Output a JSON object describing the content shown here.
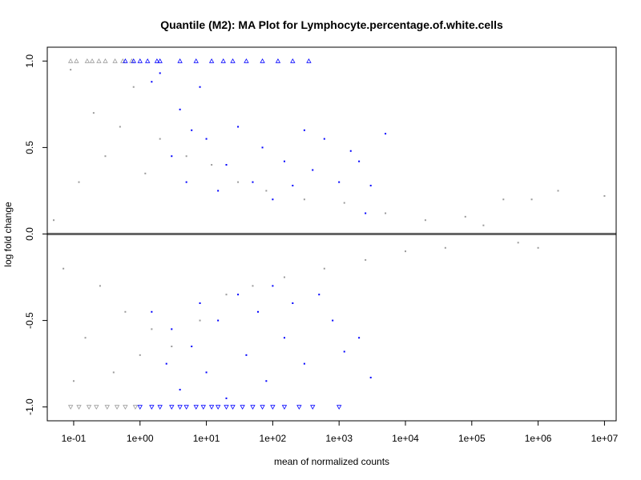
{
  "chart_data": {
    "type": "scatter",
    "title": "Quantile (M2): MA Plot for Lymphocyte.percentage.of.white.cells",
    "xlabel": "mean of normalized counts",
    "ylabel": "log fold change",
    "x_scale": "log10",
    "xlim": [
      0.04,
      15000000
    ],
    "ylim": [
      -1.08,
      1.08
    ],
    "x_ticks": [
      0.1,
      1,
      10,
      100,
      1000,
      10000,
      100000,
      1000000,
      10000000
    ],
    "x_tick_labels": [
      "1e-01",
      "1e+00",
      "1e+01",
      "1e+02",
      "1e+03",
      "1e+04",
      "1e+05",
      "1e+06",
      "1e+07"
    ],
    "y_ticks": [
      -1.0,
      -0.5,
      0.0,
      0.5,
      1.0
    ],
    "y_tick_labels": [
      "-1.0",
      "-0.5",
      "0.0",
      "0.5",
      "1.0"
    ],
    "reference_line": 0,
    "grid": false,
    "colors": {
      "not_significant": "#9a9a9a",
      "significant": "#0000ff",
      "reference_line": "#666666"
    },
    "series": [
      {
        "name": "",
        "points": [
          [
            0.05,
            0.08
          ],
          [
            0.07,
            -0.2
          ],
          [
            0.09,
            0.95
          ],
          [
            0.1,
            -0.85
          ],
          [
            0.12,
            0.3
          ],
          [
            0.15,
            -0.6
          ],
          [
            0.2,
            0.7
          ],
          [
            0.25,
            -0.3
          ],
          [
            0.3,
            0.45
          ],
          [
            0.4,
            -0.8
          ],
          [
            0.5,
            0.62
          ],
          [
            0.6,
            -0.45
          ],
          [
            0.8,
            0.85
          ],
          [
            1.0,
            -0.7
          ],
          [
            1.2,
            0.35
          ],
          [
            1.5,
            -0.55
          ],
          [
            2.0,
            0.55
          ],
          [
            3.0,
            -0.65
          ],
          [
            5.0,
            0.45
          ],
          [
            8.0,
            -0.5
          ],
          [
            12.0,
            0.4
          ],
          [
            20.0,
            -0.35
          ],
          [
            30.0,
            0.3
          ],
          [
            50.0,
            -0.3
          ],
          [
            80.0,
            0.25
          ],
          [
            150.0,
            -0.25
          ],
          [
            300.0,
            0.2
          ],
          [
            600.0,
            -0.2
          ],
          [
            1200.0,
            0.18
          ],
          [
            2500.0,
            -0.15
          ],
          [
            5000.0,
            0.12
          ],
          [
            10000.0,
            -0.1
          ],
          [
            20000.0,
            0.08
          ],
          [
            40000.0,
            -0.08
          ],
          [
            80000.0,
            0.1
          ],
          [
            150000.0,
            0.05
          ],
          [
            300000.0,
            0.2
          ],
          [
            500000.0,
            -0.05
          ],
          [
            800000.0,
            0.2
          ],
          [
            1000000.0,
            -0.08
          ],
          [
            2000000.0,
            0.25
          ],
          [
            10000000.0,
            0.22
          ]
        ]
      },
      {
        "name": "",
        "points": [
          [
            1.5,
            0.88
          ],
          [
            2.0,
            0.93
          ],
          [
            3.0,
            0.45
          ],
          [
            4.0,
            0.72
          ],
          [
            5.0,
            0.3
          ],
          [
            6.0,
            0.6
          ],
          [
            8.0,
            0.85
          ],
          [
            10.0,
            0.55
          ],
          [
            15.0,
            0.25
          ],
          [
            20.0,
            0.4
          ],
          [
            30.0,
            0.62
          ],
          [
            50.0,
            0.3
          ],
          [
            70.0,
            0.5
          ],
          [
            100.0,
            0.2
          ],
          [
            150.0,
            0.42
          ],
          [
            200.0,
            0.28
          ],
          [
            300.0,
            0.6
          ],
          [
            400.0,
            0.37
          ],
          [
            600.0,
            0.55
          ],
          [
            1000.0,
            0.3
          ],
          [
            1500.0,
            0.48
          ],
          [
            2000.0,
            0.42
          ],
          [
            2500.0,
            0.12
          ],
          [
            3000.0,
            0.28
          ],
          [
            5000.0,
            0.58
          ],
          [
            1.5,
            -0.45
          ],
          [
            2.5,
            -0.75
          ],
          [
            3.0,
            -0.55
          ],
          [
            4.0,
            -0.9
          ],
          [
            6.0,
            -0.65
          ],
          [
            8.0,
            -0.4
          ],
          [
            10.0,
            -0.8
          ],
          [
            15.0,
            -0.5
          ],
          [
            20.0,
            -0.95
          ],
          [
            30.0,
            -0.35
          ],
          [
            40.0,
            -0.7
          ],
          [
            60.0,
            -0.45
          ],
          [
            80.0,
            -0.85
          ],
          [
            100.0,
            -0.3
          ],
          [
            150.0,
            -0.6
          ],
          [
            200.0,
            -0.4
          ],
          [
            300.0,
            -0.75
          ],
          [
            500.0,
            -0.35
          ],
          [
            800.0,
            -0.5
          ],
          [
            1200.0,
            -0.68
          ],
          [
            2000.0,
            -0.6
          ],
          [
            3000.0,
            -0.83
          ]
        ]
      }
    ],
    "clipped_markers": {
      "top_value": 1.0,
      "bottom_value": -1.0,
      "gray_top_x": [
        0.09,
        0.11,
        0.16,
        0.19,
        0.24,
        0.3,
        0.42,
        0.55,
        0.75
      ],
      "blue_top_x": [
        0.6,
        0.8,
        1.0,
        1.3,
        1.8,
        2.0,
        4.0,
        7.0,
        12.0,
        18.0,
        25.0,
        40.0,
        70.0,
        120.0,
        200.0,
        350.0
      ],
      "gray_bottom_x": [
        0.09,
        0.12,
        0.17,
        0.22,
        0.32,
        0.45,
        0.6,
        0.85
      ],
      "blue_bottom_x": [
        1.0,
        1.5,
        2.0,
        3.0,
        4.0,
        5.0,
        7.0,
        9.0,
        12.0,
        15.0,
        20.0,
        25.0,
        35.0,
        50.0,
        70.0,
        100.0,
        150.0,
        250.0,
        400.0,
        1000.0
      ]
    }
  }
}
